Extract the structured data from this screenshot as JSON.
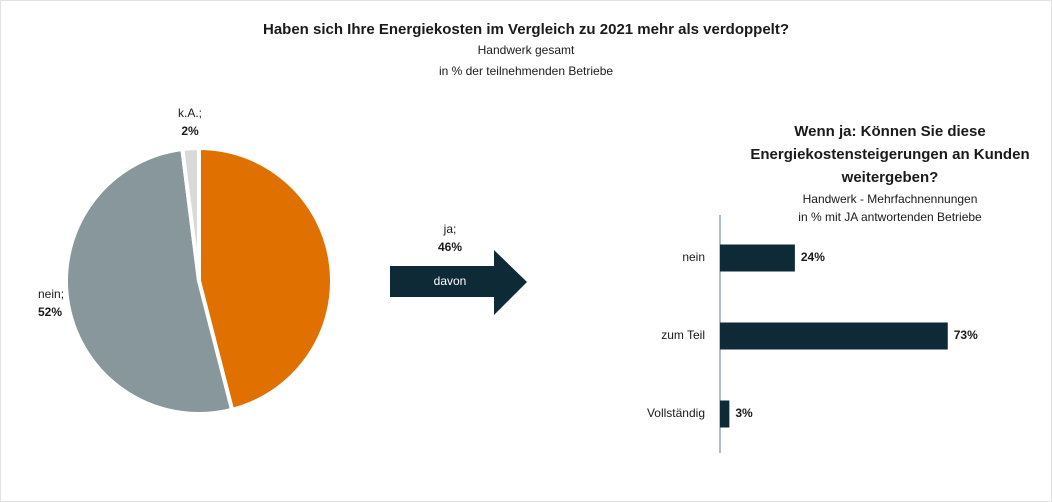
{
  "chart_data": [
    {
      "type": "pie",
      "title": "Haben sich Ihre Energiekosten im Vergleich zu 2021 mehr als verdoppelt?",
      "subtitle": [
        "Handwerk gesamt",
        "in % der teilnehmenden Betriebe"
      ],
      "categories": [
        "ja;",
        "nein;",
        "k.A.;"
      ],
      "values": [
        46,
        52,
        2
      ],
      "value_labels": [
        "46%",
        "52%",
        "2%"
      ],
      "colors": [
        "#e07000",
        "#87979c",
        "#d9d9d9"
      ],
      "annotation": "davon"
    },
    {
      "type": "hbar",
      "title": [
        "Wenn ja: Können Sie diese",
        "Energiekostensteigerungen an Kunden",
        "weitergeben?"
      ],
      "subtitle": [
        "Handwerk - Mehrfachnennungen",
        "in % mit JA antwortenden Betriebe"
      ],
      "categories": [
        "nein",
        "zum Teil",
        "Vollständig"
      ],
      "values": [
        24,
        73,
        3
      ],
      "value_labels": [
        "24%",
        "73%",
        "3%"
      ],
      "color": "#0d2a36",
      "xlim": [
        0,
        100
      ]
    }
  ]
}
